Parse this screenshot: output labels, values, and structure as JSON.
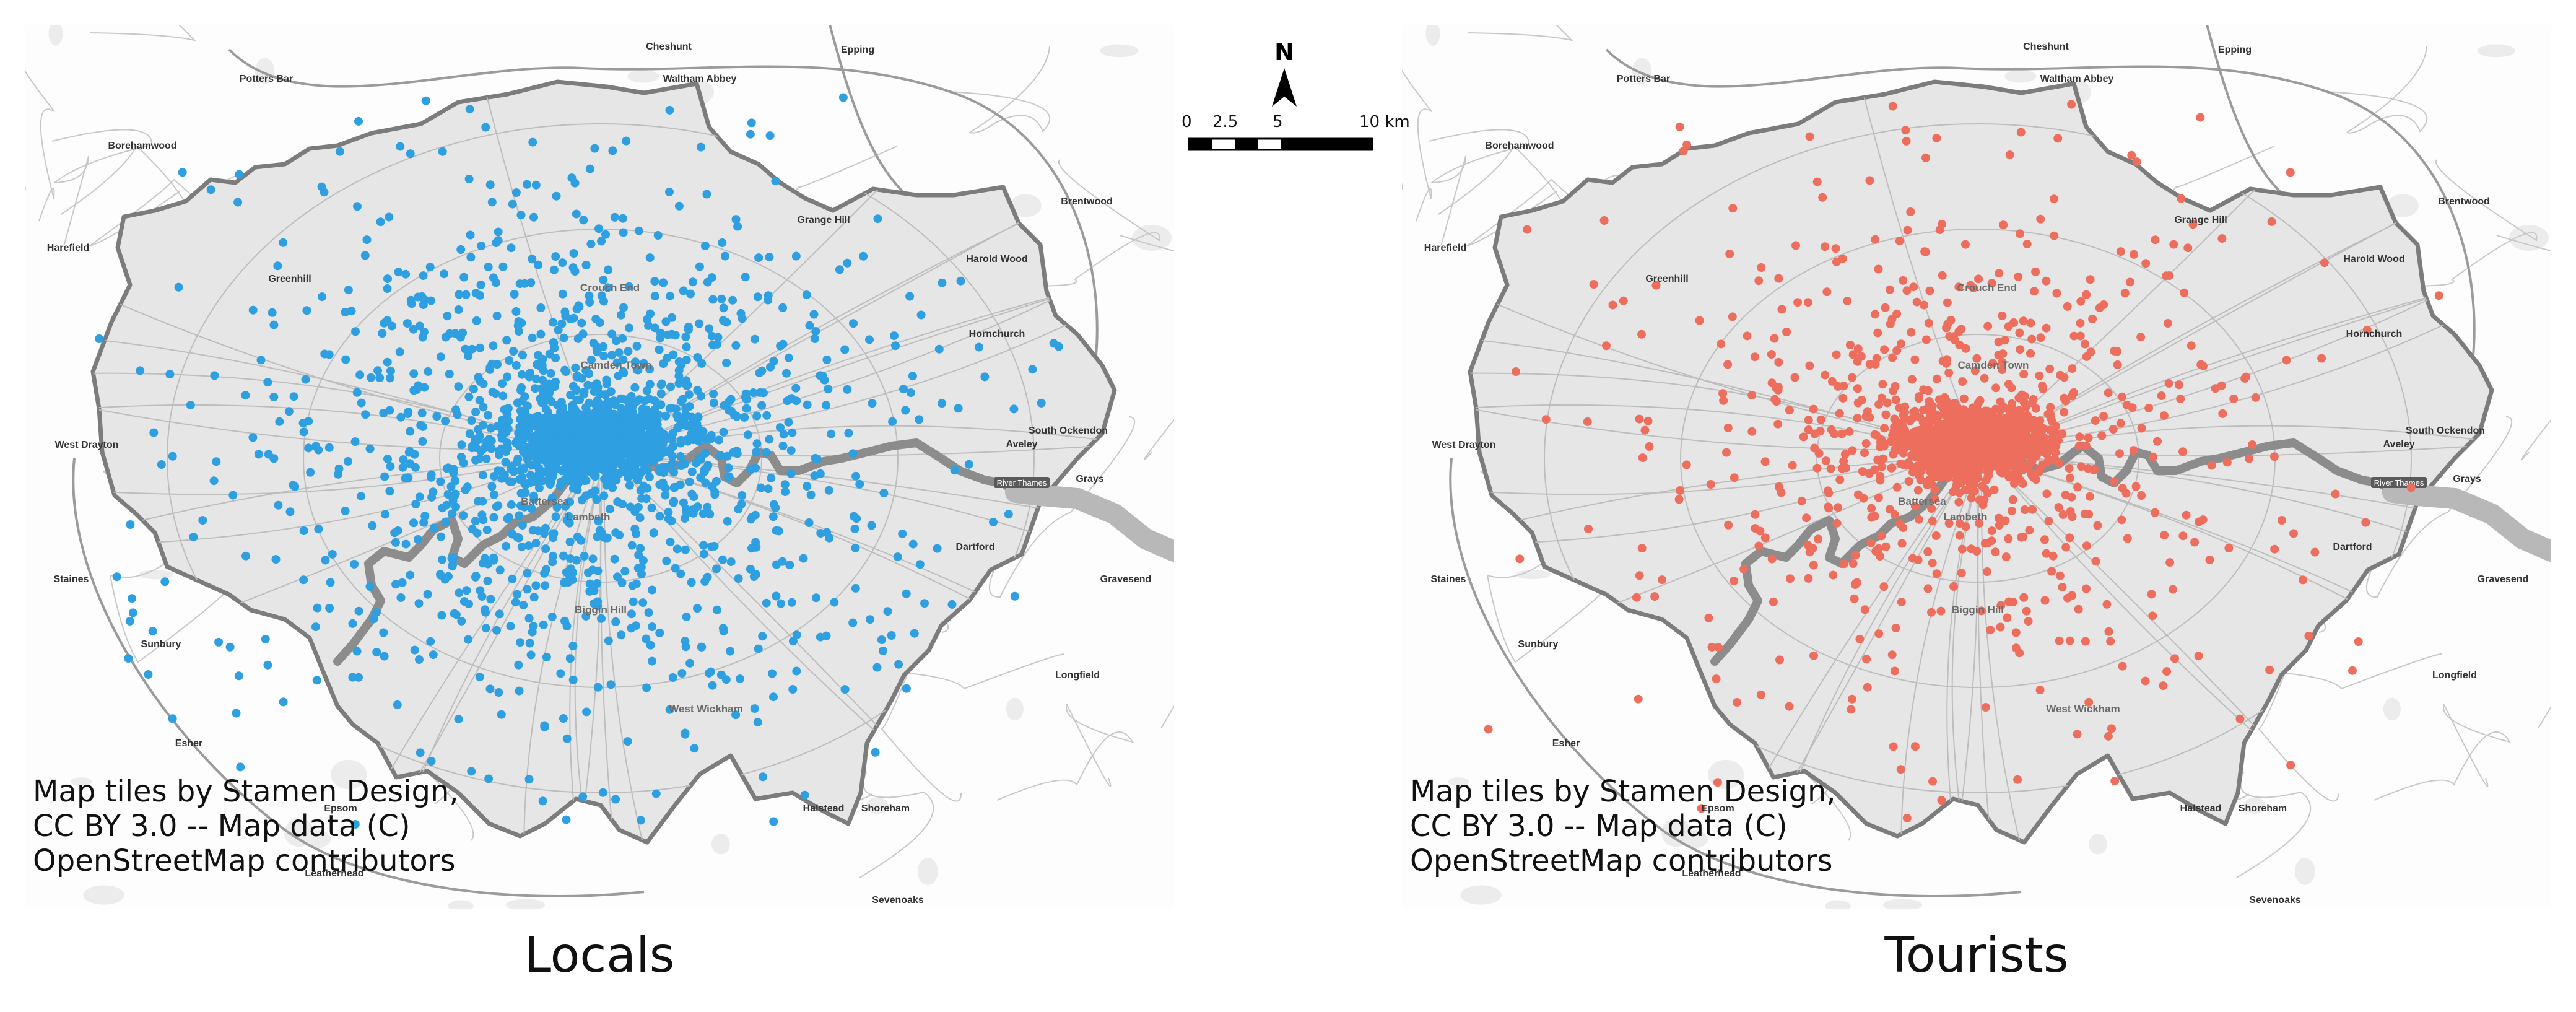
{
  "figure": {
    "attribution": "Map tiles by Stamen Design, CC BY 3.0 -- Map data (C) OpenStreetMap contributors",
    "north_label": "N",
    "scale_labels": [
      "0",
      "2.5",
      "5",
      "10 km"
    ],
    "river_label": "River Thames",
    "colors": {
      "locals": "#2e9fe0",
      "tourists": "#ee6e5e",
      "boundary_fill": "#e6e6e6",
      "boundary_stroke": "#7c7c7c",
      "river": "#8c8c8c",
      "roads": "#9a9a9a"
    }
  },
  "panels": [
    {
      "id": "locals",
      "title": "Locals"
    },
    {
      "id": "tourists",
      "title": "Tourists"
    }
  ],
  "place_labels": {
    "outside": [
      "Cheshunt",
      "Epping",
      "Potters Bar",
      "Waltham Abbey",
      "Borehamwood",
      "Brentwood",
      "Grange Hill",
      "Harefield",
      "Harold Wood",
      "Greenhill",
      "Hornchurch",
      "South Ockendon",
      "Aveley",
      "West Drayton",
      "Grays",
      "Dartford",
      "Staines",
      "Gravesend",
      "Sunbury",
      "Longfield",
      "Esher",
      "Epsom",
      "Halstead",
      "Shoreham",
      "Leatherhead",
      "Sevenoaks"
    ],
    "inside": [
      "Crouch End",
      "Camden Town",
      "Lambeth",
      "Battersea",
      "Biggin Hill",
      "West Wickham"
    ]
  }
}
